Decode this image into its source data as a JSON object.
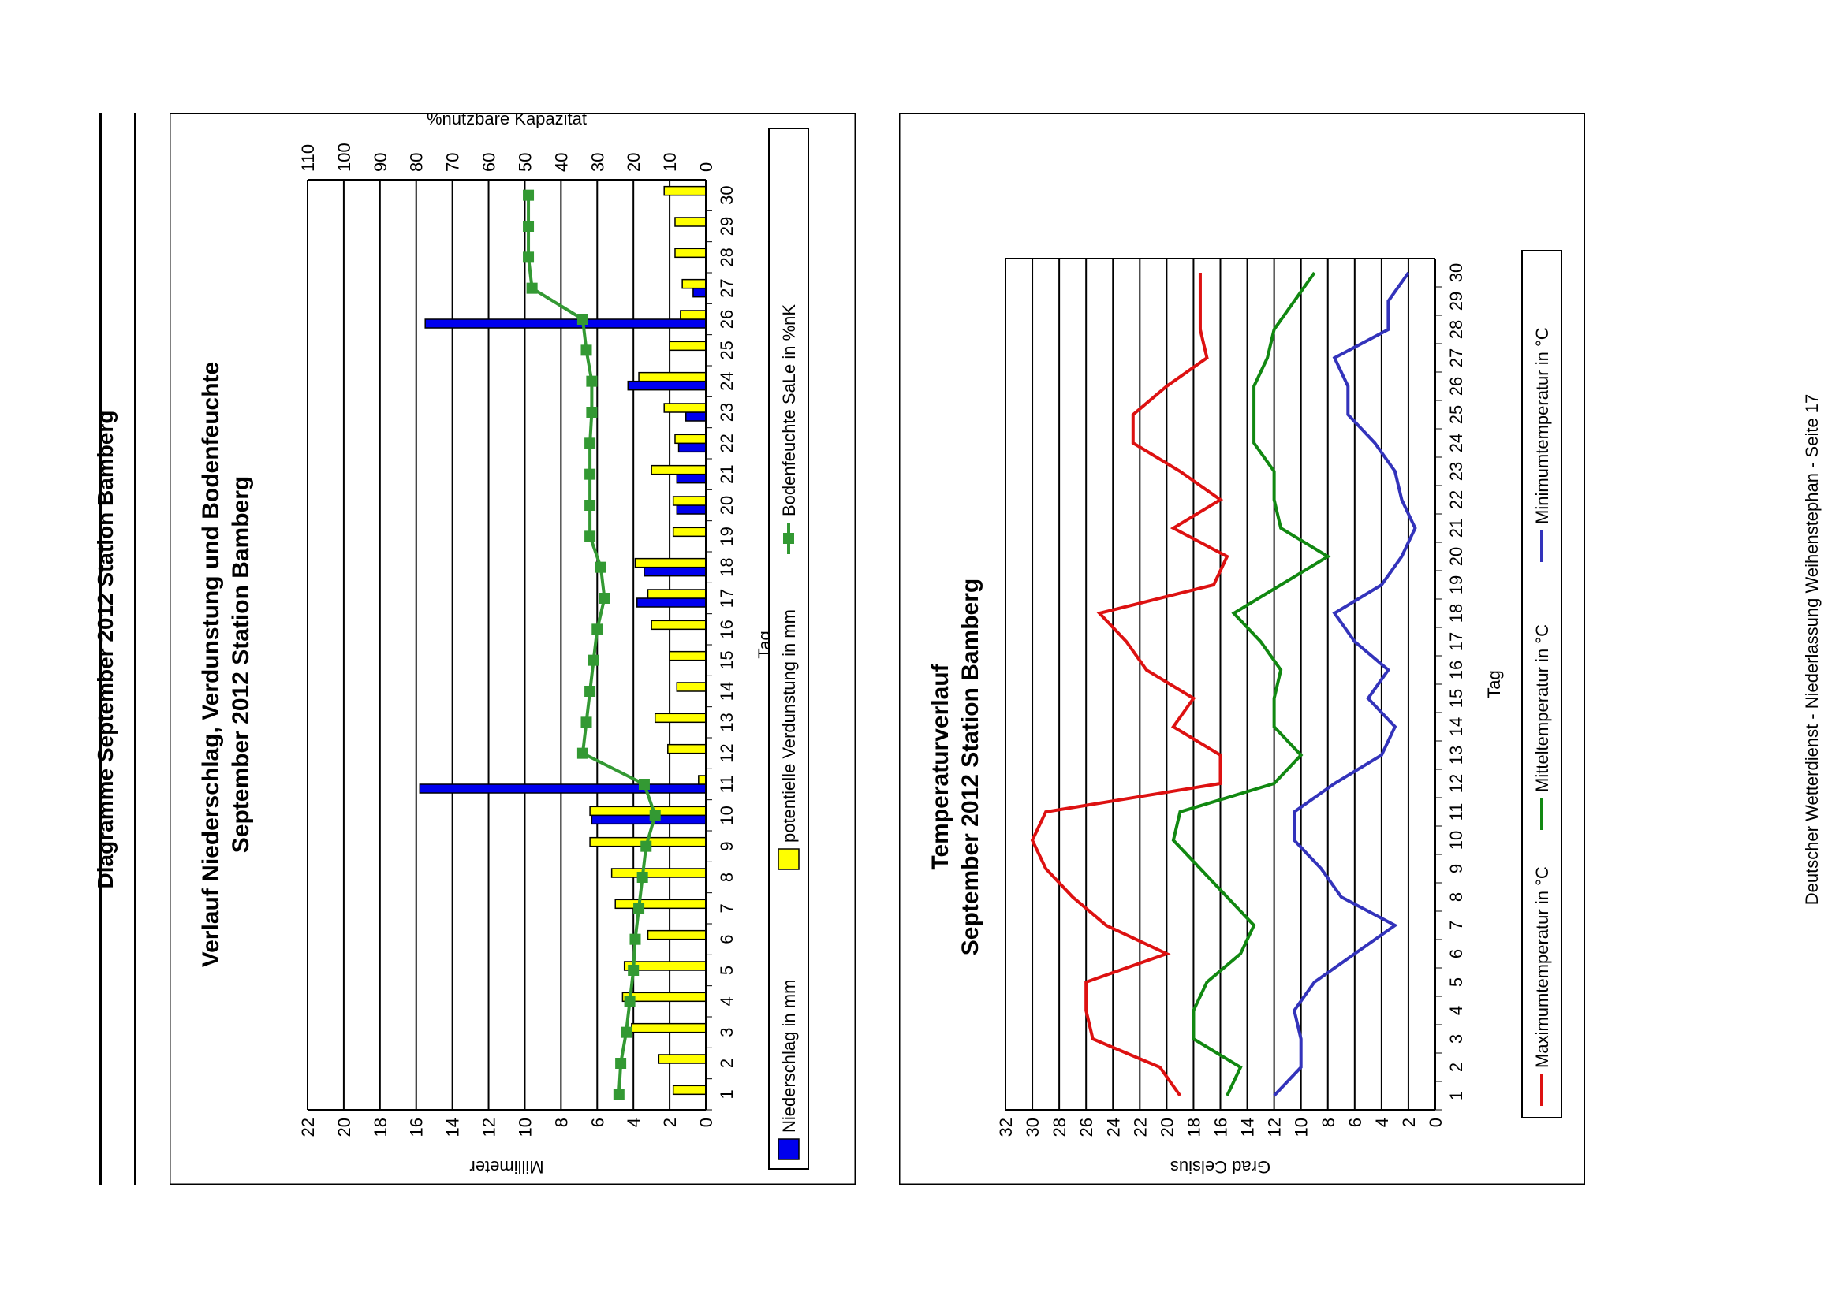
{
  "page": {
    "heading": "Diagramme September 2012 Station Bamberg",
    "footer": "Deutscher Wetterdienst - Niederlassung Weihenstephan - Seite 17"
  },
  "chart_data": [
    {
      "type": "bar",
      "title": "Verlauf Niederschlag, Verdunstung und Bodenfeuchte",
      "subtitle": "September 2012 Station Bamberg",
      "xlabel": "Tag",
      "ylabel": "Millimeter",
      "ylabel_right": "%nutzbare Kapazität",
      "categories": [
        "1",
        "2",
        "3",
        "4",
        "5",
        "6",
        "7",
        "8",
        "9",
        "10",
        "11",
        "12",
        "13",
        "14",
        "15",
        "16",
        "17",
        "18",
        "19",
        "20",
        "21",
        "22",
        "23",
        "24",
        "25",
        "26",
        "27",
        "28",
        "29",
        "30"
      ],
      "ylim": [
        0,
        22
      ],
      "yticks": [
        0,
        2,
        4,
        6,
        8,
        10,
        12,
        14,
        16,
        18,
        20,
        22
      ],
      "ylim_right": [
        0,
        110
      ],
      "yticks_right": [
        0,
        10,
        20,
        30,
        40,
        50,
        60,
        70,
        80,
        90,
        100,
        110
      ],
      "grid": true,
      "legend_position": "bottom",
      "series": [
        {
          "name": "Niederschlag in mm",
          "kind": "bar",
          "axis": "left",
          "color": "#0000ee",
          "values": [
            0,
            0,
            0,
            0,
            0,
            0,
            0,
            0,
            0,
            6.3,
            15.8,
            0,
            0,
            0,
            0,
            0,
            3.8,
            3.4,
            0,
            1.6,
            1.6,
            1.5,
            1.1,
            4.3,
            0,
            15.5,
            0.7,
            0,
            0,
            0
          ]
        },
        {
          "name": "potentielle Verdunstung in mm",
          "kind": "bar",
          "axis": "left",
          "color": "#ffff00",
          "values": [
            1.8,
            2.6,
            4.1,
            4.6,
            4.5,
            3.2,
            5.0,
            5.2,
            6.4,
            6.4,
            0.4,
            2.1,
            2.8,
            1.6,
            2.0,
            3.0,
            3.2,
            3.9,
            1.8,
            1.8,
            3.0,
            1.7,
            2.3,
            3.7,
            2.0,
            1.4,
            1.3,
            1.7,
            1.7,
            2.3
          ]
        },
        {
          "name": "Bodenfeuchte SaLe in %nK",
          "kind": "line",
          "axis": "right",
          "color": "#339933",
          "values": [
            24,
            23.5,
            22,
            21,
            20,
            19.5,
            18.5,
            17.5,
            16.5,
            14,
            17,
            34,
            33,
            32,
            31,
            30,
            28,
            29,
            32,
            32,
            32,
            32,
            31.5,
            31.5,
            33,
            34,
            48,
            49,
            49,
            49
          ]
        }
      ]
    },
    {
      "type": "line",
      "title": "Temperaturverlauf",
      "subtitle": "September 2012 Station Bamberg",
      "xlabel": "Tag",
      "ylabel": "Grad Celsius",
      "categories": [
        "1",
        "2",
        "3",
        "4",
        "5",
        "6",
        "7",
        "8",
        "9",
        "10",
        "11",
        "12",
        "13",
        "14",
        "15",
        "16",
        "17",
        "18",
        "19",
        "20",
        "21",
        "22",
        "23",
        "24",
        "25",
        "26",
        "27",
        "28",
        "29",
        "30"
      ],
      "ylim": [
        0,
        32
      ],
      "yticks": [
        0,
        2,
        4,
        6,
        8,
        10,
        12,
        14,
        16,
        18,
        20,
        22,
        24,
        26,
        28,
        30,
        32
      ],
      "grid": true,
      "legend_position": "bottom",
      "series": [
        {
          "name": "Maximumtemperatur in °C",
          "color": "#dd1111",
          "values": [
            19,
            20.5,
            25.5,
            26,
            26,
            20,
            24.5,
            27,
            29,
            30,
            29,
            16,
            16,
            19.5,
            18,
            21.5,
            23,
            25,
            16.5,
            15.5,
            19.5,
            16,
            19,
            22.5,
            22.5,
            20,
            17,
            17.5,
            17.5,
            17.5
          ]
        },
        {
          "name": "Mitteltemperatur in °C",
          "color": "#118811",
          "values": [
            15.5,
            14.5,
            18,
            18,
            17,
            14.5,
            13.5,
            15.5,
            17.5,
            19.5,
            19,
            12,
            10,
            12,
            12,
            11.5,
            13,
            15,
            11.5,
            8,
            11.5,
            12,
            12,
            13.5,
            13.5,
            13.5,
            12.5,
            12,
            10.5,
            9
          ]
        },
        {
          "name": "Minimumtemperatur in °C",
          "color": "#3333bb",
          "values": [
            12,
            10,
            10,
            10.5,
            9,
            6,
            3,
            7,
            8.5,
            10.5,
            10.5,
            7.5,
            4,
            3,
            5,
            3.5,
            6,
            7.5,
            4,
            2.5,
            1.5,
            2.5,
            3,
            4.5,
            6.5,
            6.5,
            7.5,
            3.5,
            3.5,
            2
          ]
        }
      ]
    }
  ]
}
